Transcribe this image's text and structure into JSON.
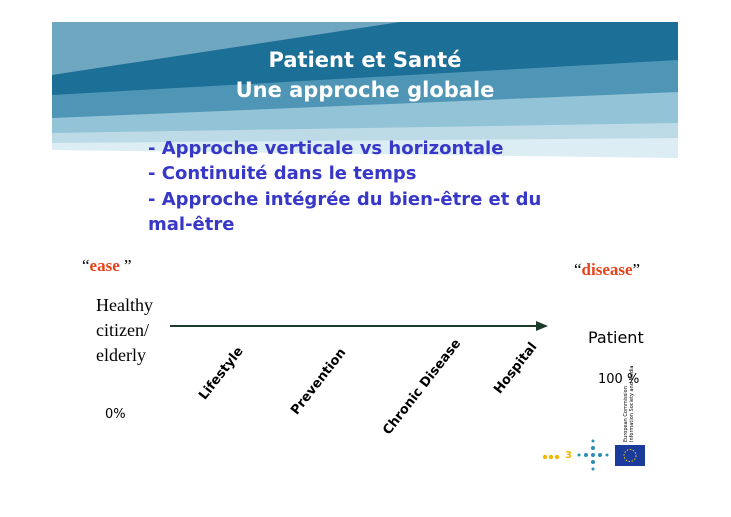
{
  "header": {
    "title_lines": [
      "Patient et Santé",
      "Une approche globale"
    ]
  },
  "bullets": [
    "- Approche verticale vs horizontale",
    "- Continuité dans le temps",
    "- Approche intégrée du bien-être et du",
    "mal-être"
  ],
  "scale": {
    "left": {
      "open_quote": "“",
      "word": "ease",
      "close_quote": " ”"
    },
    "right": {
      "open_quote": "“",
      "word": "disease",
      "close_quote": "”"
    },
    "start_lines": [
      "Healthy",
      "citizen/",
      "elderly"
    ],
    "start_percent": "0%",
    "end_label": "Patient",
    "end_percent": "100 %",
    "stages": [
      "Lifestyle",
      "Prevention",
      "Chronic Disease",
      "Hospital"
    ]
  },
  "footer": {
    "page_number": "3",
    "logo_text": [
      "European Commission",
      "Information Society and Media"
    ]
  }
}
